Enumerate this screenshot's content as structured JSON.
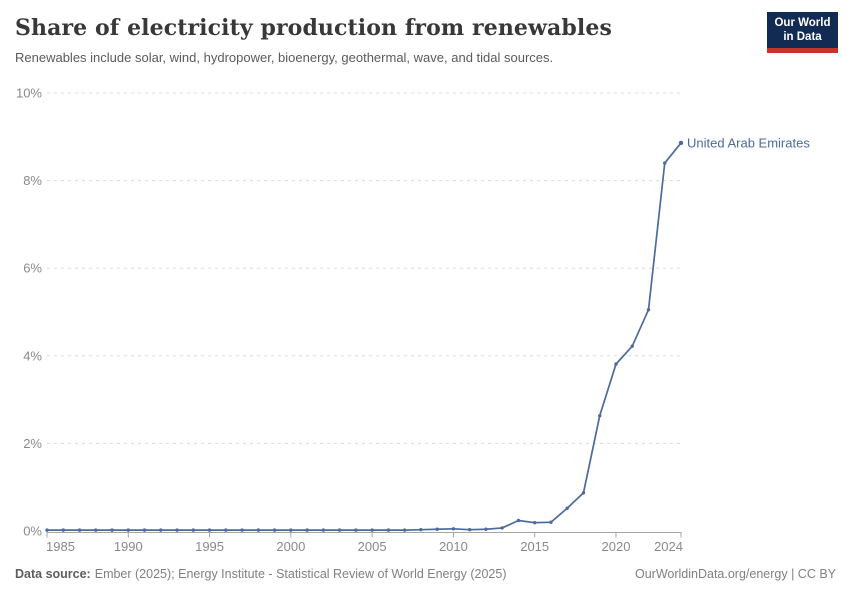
{
  "header": {
    "title": "Share of electricity production from renewables",
    "subtitle": "Renewables include solar, wind, hydropower, bioenergy, geothermal, wave, and tidal sources.",
    "logo": {
      "line1": "Our World",
      "line2": "in Data",
      "bg_color": "#122b52",
      "bar_color": "#c5332a"
    }
  },
  "chart_data": {
    "type": "line",
    "title": "Share of electricity production from renewables",
    "xlabel": "",
    "ylabel": "",
    "xlim": [
      1985,
      2024
    ],
    "ylim": [
      0,
      10
    ],
    "grid": "horizontal-dashed",
    "legend_position": "end-of-line-label",
    "x_ticks": [
      1985,
      1990,
      1995,
      2000,
      2005,
      2010,
      2015,
      2020,
      2024
    ],
    "x_tick_labels": [
      "1985",
      "1990",
      "1995",
      "2000",
      "2005",
      "2010",
      "2015",
      "2020",
      "2024"
    ],
    "y_ticks": [
      0,
      2,
      4,
      6,
      8,
      10
    ],
    "y_tick_labels": [
      "0%",
      "2%",
      "4%",
      "6%",
      "8%",
      "10%"
    ],
    "series": [
      {
        "name": "United Arab Emirates",
        "color": "#4c6a9c",
        "x": [
          1985,
          1986,
          1987,
          1988,
          1989,
          1990,
          1991,
          1992,
          1993,
          1994,
          1995,
          1996,
          1997,
          1998,
          1999,
          2000,
          2001,
          2002,
          2003,
          2004,
          2005,
          2006,
          2007,
          2008,
          2009,
          2010,
          2011,
          2012,
          2013,
          2014,
          2015,
          2016,
          2017,
          2018,
          2019,
          2020,
          2021,
          2022,
          2023,
          2024
        ],
        "values": [
          0.02,
          0.02,
          0.02,
          0.02,
          0.02,
          0.02,
          0.02,
          0.02,
          0.02,
          0.02,
          0.02,
          0.02,
          0.02,
          0.02,
          0.02,
          0.02,
          0.02,
          0.02,
          0.02,
          0.02,
          0.02,
          0.02,
          0.02,
          0.03,
          0.04,
          0.05,
          0.03,
          0.04,
          0.07,
          0.24,
          0.19,
          0.2,
          0.52,
          0.87,
          2.63,
          3.81,
          4.22,
          5.05,
          8.4,
          8.86
        ]
      }
    ],
    "colors": {
      "grid": "#dcdcdc",
      "axis": "#a5a5a5",
      "tick_label": "#8a8a8a"
    }
  },
  "footer": {
    "source_label": "Data source:",
    "source_text": "Ember (2025); Energy Institute - Statistical Review of World Energy (2025)",
    "credit": "OurWorldinData.org/energy | CC BY"
  }
}
